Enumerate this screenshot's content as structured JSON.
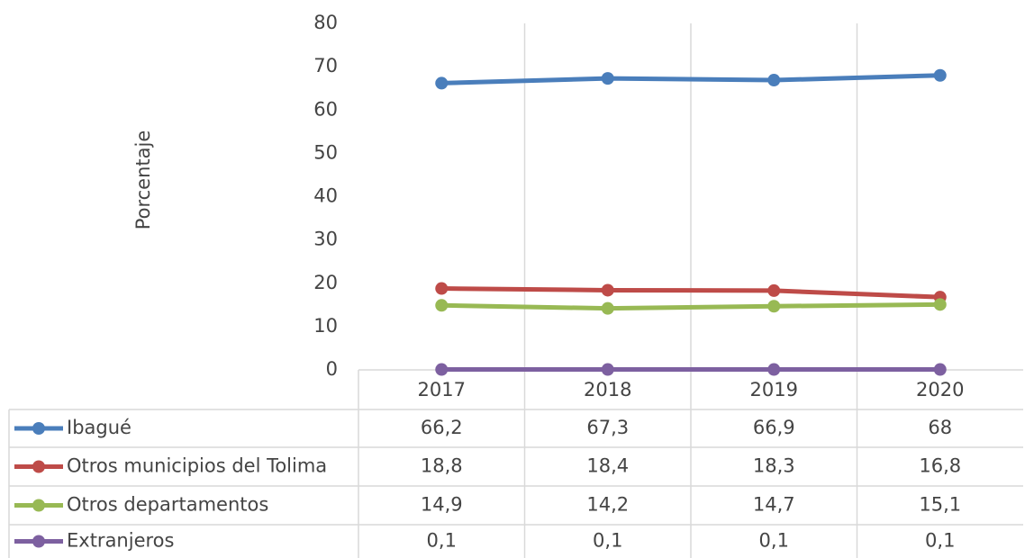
{
  "chart_data": {
    "type": "line",
    "y_axis_label": "Porcentaje",
    "categories": [
      "2017",
      "2018",
      "2019",
      "2020"
    ],
    "series": [
      {
        "name": "Ibagué",
        "color": "#4a7ebb",
        "values": [
          66.2,
          67.3,
          66.9,
          68
        ],
        "value_labels": [
          "66,2",
          "67,3",
          "66,9",
          "68"
        ]
      },
      {
        "name": "Otros municipios del Tolima",
        "color": "#be4b48",
        "values": [
          18.8,
          18.4,
          18.3,
          16.8
        ],
        "value_labels": [
          "18,8",
          "18,4",
          "18,3",
          "16,8"
        ]
      },
      {
        "name": "Otros departamentos",
        "color": "#98b954",
        "values": [
          14.9,
          14.2,
          14.7,
          15.1
        ],
        "value_labels": [
          "14,9",
          "14,2",
          "14,7",
          "15,1"
        ]
      },
      {
        "name": "Extranjeros",
        "color": "#7d60a0",
        "values": [
          0.1,
          0.1,
          0.1,
          0.1
        ],
        "value_labels": [
          "0,1",
          "0,1",
          "0,1",
          "0,1"
        ]
      }
    ],
    "ylim": [
      0,
      80
    ],
    "yticks": [
      0,
      10,
      20,
      30,
      40,
      50,
      60,
      70,
      80
    ],
    "grid": false
  }
}
